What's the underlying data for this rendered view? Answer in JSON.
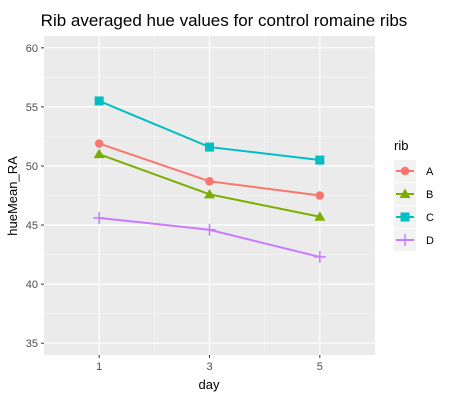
{
  "chart_data": {
    "type": "line",
    "title": "Rib averaged hue values for control romaine ribs",
    "xlabel": "day",
    "ylabel": "hueMean_RA",
    "x": [
      1,
      3,
      5
    ],
    "x_tick_labels": [
      "1",
      "3",
      "5"
    ],
    "xlim": [
      0,
      6
    ],
    "ylim": [
      34,
      61
    ],
    "y_ticks": [
      35,
      40,
      45,
      50,
      55,
      60
    ],
    "grid": true,
    "legend_title": "rib",
    "legend_position": "right",
    "series": [
      {
        "name": "A",
        "values": [
          51.9,
          48.7,
          47.5
        ],
        "color": "#F8766D",
        "marker": "circle"
      },
      {
        "name": "B",
        "values": [
          51.0,
          47.6,
          45.7
        ],
        "color": "#7CAE00",
        "marker": "triangle"
      },
      {
        "name": "C",
        "values": [
          55.5,
          51.6,
          50.5
        ],
        "color": "#00BFC4",
        "marker": "square"
      },
      {
        "name": "D",
        "values": [
          45.6,
          44.6,
          42.3
        ],
        "color": "#C77CFF",
        "marker": "plus"
      }
    ]
  }
}
